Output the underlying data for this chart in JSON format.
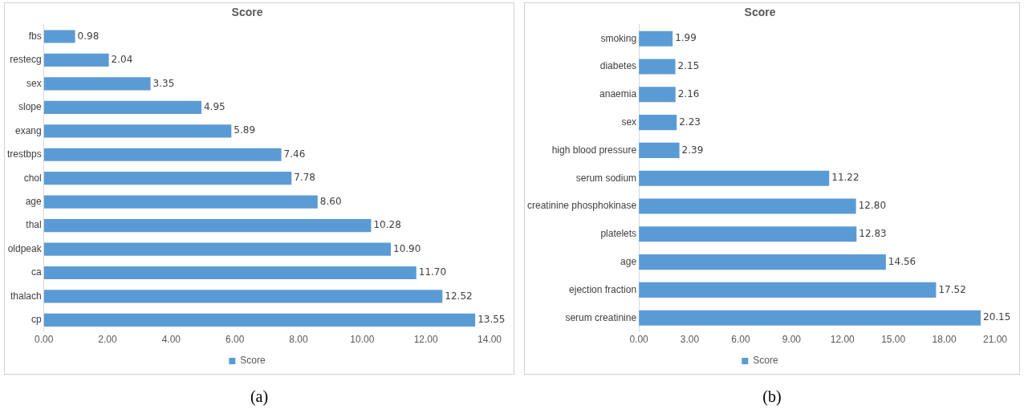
{
  "chart_data": [
    {
      "type": "bar",
      "orientation": "horizontal",
      "title": "Score",
      "categories": [
        "fbs",
        "restecg",
        "sex",
        "slope",
        "exang",
        "trestbps",
        "chol",
        "age",
        "thal",
        "oldpeak",
        "ca",
        "thalach",
        "cp"
      ],
      "series": [
        {
          "name": "Score",
          "color": "#5b9bd5",
          "values": [
            0.98,
            2.04,
            3.35,
            4.95,
            5.89,
            7.46,
            7.78,
            8.6,
            10.28,
            10.9,
            11.7,
            12.52,
            13.55
          ],
          "value_labels": [
            "0.98",
            "2.04",
            "3.35",
            "4.95",
            "5.89",
            "7.46",
            "7.78",
            "8.60",
            "10.28",
            "10.90",
            "11.70",
            "12.52",
            "13.55"
          ]
        }
      ],
      "xlim": [
        0,
        14
      ],
      "xticks": [
        {
          "value": 0,
          "label": "0.00"
        },
        {
          "value": 2,
          "label": "2.00"
        },
        {
          "value": 4,
          "label": "4.00"
        },
        {
          "value": 6,
          "label": "6.00"
        },
        {
          "value": 8,
          "label": "8.00"
        },
        {
          "value": 10,
          "label": "10.00"
        },
        {
          "value": 12,
          "label": "12.00"
        },
        {
          "value": 14,
          "label": "14.00"
        }
      ],
      "grid": false,
      "legend": "bottom",
      "annotations": [
        "(a)"
      ]
    },
    {
      "type": "bar",
      "orientation": "horizontal",
      "title": "Score",
      "categories": [
        "smoking",
        "diabetes",
        "anaemia",
        "sex",
        "high blood pressure",
        "serum sodium",
        "creatinine phosphokinase",
        "platelets",
        "age",
        "ejection fraction",
        "serum creatinine"
      ],
      "series": [
        {
          "name": "Score",
          "color": "#5b9bd5",
          "values": [
            1.99,
            2.15,
            2.16,
            2.23,
            2.39,
            11.22,
            12.8,
            12.83,
            14.56,
            17.52,
            20.15
          ],
          "value_labels": [
            "1.99",
            "2.15",
            "2.16",
            "2.23",
            "2.39",
            "11.22",
            "12.80",
            "12.83",
            "14.56",
            "17.52",
            "20.15"
          ]
        }
      ],
      "xlim": [
        0,
        21
      ],
      "xticks": [
        {
          "value": 0,
          "label": "0.00"
        },
        {
          "value": 3,
          "label": "3.00"
        },
        {
          "value": 6,
          "label": "6.00"
        },
        {
          "value": 9,
          "label": "9.00"
        },
        {
          "value": 12,
          "label": "12.00"
        },
        {
          "value": 15,
          "label": "15.00"
        },
        {
          "value": 18,
          "label": "18.00"
        },
        {
          "value": 21,
          "label": "21.00"
        }
      ],
      "grid": false,
      "legend": "bottom",
      "annotations": [
        "(b)"
      ]
    }
  ]
}
